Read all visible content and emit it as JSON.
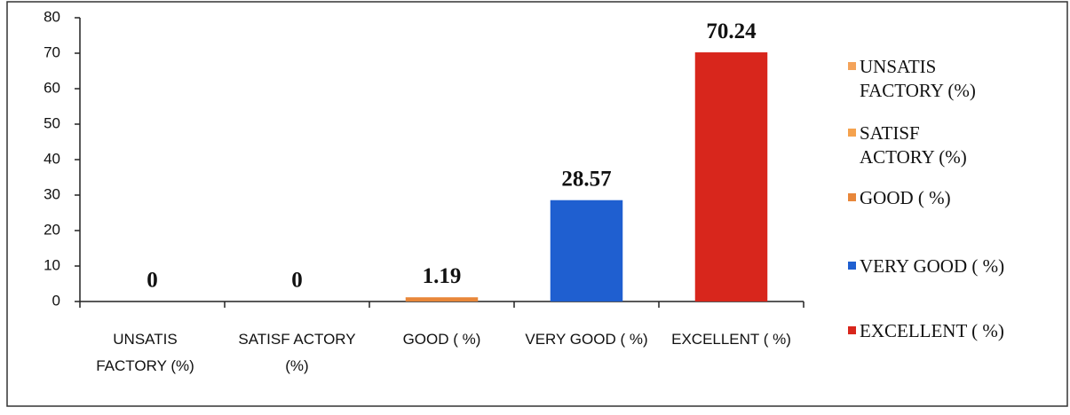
{
  "chart_data": {
    "type": "bar",
    "categories": [
      "UNSATIS FACTORY (%)",
      "SATISF ACTORY (%)",
      "GOOD ( %)",
      "VERY GOOD ( %)",
      "EXCELLENT ( %)"
    ],
    "values": [
      0,
      0,
      1.19,
      28.57,
      70.24
    ],
    "colors": [
      "#f4a35a",
      "#f5a24e",
      "#e8873a",
      "#1f5fd0",
      "#d8261c"
    ],
    "ylim": [
      0,
      80
    ],
    "yticks": [
      0,
      10,
      20,
      30,
      40,
      50,
      60,
      70,
      80
    ],
    "grid": false,
    "legend": "right"
  }
}
